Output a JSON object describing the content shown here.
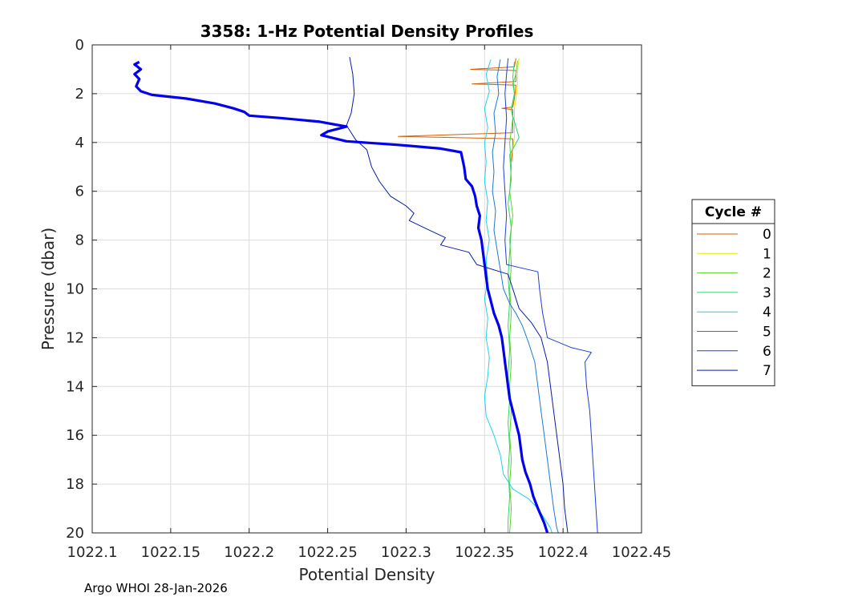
{
  "chart_data": {
    "type": "line",
    "title": "3358: 1-Hz Potential Density Profiles",
    "xlabel": "Potential Density",
    "ylabel": "Pressure (dbar)",
    "xlim": [
      1022.1,
      1022.45
    ],
    "ylim": [
      0,
      20
    ],
    "y_reversed": true,
    "grid": true,
    "x_ticks": [
      1022.1,
      1022.15,
      1022.2,
      1022.25,
      1022.3,
      1022.35,
      1022.4,
      1022.45
    ],
    "x_tick_labels": [
      "1022.1",
      "1022.15",
      "1022.2",
      "1022.25",
      "1022.3",
      "1022.35",
      "1022.4",
      "1022.45"
    ],
    "y_ticks": [
      0,
      2,
      4,
      6,
      8,
      10,
      12,
      14,
      16,
      18,
      20
    ],
    "y_tick_labels": [
      "0",
      "2",
      "4",
      "6",
      "8",
      "10",
      "12",
      "14",
      "16",
      "18",
      "20"
    ],
    "legend": {
      "title": "Cycle #",
      "placement": "outside-right"
    },
    "series": [
      {
        "name": "0",
        "color": "#d95f02",
        "width": 1,
        "points": [
          [
            1022.37,
            0.55
          ],
          [
            1022.369,
            0.9
          ],
          [
            1022.341,
            1.0
          ],
          [
            1022.37,
            1.05
          ],
          [
            1022.37,
            1.5
          ],
          [
            1022.342,
            1.6
          ],
          [
            1022.37,
            1.65
          ],
          [
            1022.369,
            2.2
          ],
          [
            1022.368,
            2.55
          ],
          [
            1022.361,
            2.6
          ],
          [
            1022.368,
            2.65
          ],
          [
            1022.368,
            3.6
          ],
          [
            1022.295,
            3.75
          ],
          [
            1022.368,
            3.85
          ],
          [
            1022.368,
            4.2
          ],
          [
            1022.367,
            4.8
          ]
        ]
      },
      {
        "name": "1",
        "color": "#e8e800",
        "width": 1,
        "points": [
          [
            1022.372,
            0.55
          ],
          [
            1022.371,
            1.0
          ],
          [
            1022.371,
            1.6
          ],
          [
            1022.37,
            2.2
          ],
          [
            1022.369,
            2.6
          ],
          [
            1022.369,
            3.3
          ],
          [
            1022.369,
            3.8
          ],
          [
            1022.368,
            4.3
          ],
          [
            1022.368,
            4.8
          ]
        ]
      },
      {
        "name": "2",
        "color": "#5ad22e",
        "width": 1,
        "points": [
          [
            1022.371,
            0.65
          ],
          [
            1022.37,
            1.2
          ],
          [
            1022.368,
            1.6
          ],
          [
            1022.369,
            2.0
          ],
          [
            1022.367,
            2.6
          ],
          [
            1022.368,
            3.0
          ],
          [
            1022.367,
            3.5
          ],
          [
            1022.366,
            4.0
          ],
          [
            1022.367,
            5.0
          ],
          [
            1022.366,
            6.0
          ],
          [
            1022.368,
            7.0
          ],
          [
            1022.366,
            8.0
          ],
          [
            1022.367,
            9.0
          ],
          [
            1022.366,
            10.0
          ],
          [
            1022.367,
            11.0
          ],
          [
            1022.366,
            12.0
          ],
          [
            1022.367,
            13.0
          ],
          [
            1022.366,
            14.0
          ],
          [
            1022.367,
            15.0
          ],
          [
            1022.366,
            16.0
          ],
          [
            1022.367,
            17.0
          ],
          [
            1022.366,
            18.0
          ],
          [
            1022.367,
            19.0
          ],
          [
            1022.366,
            20.0
          ]
        ]
      },
      {
        "name": "3",
        "color": "#33d466",
        "width": 1,
        "points": [
          [
            1022.369,
            0.7
          ],
          [
            1022.368,
            1.3
          ],
          [
            1022.369,
            2.0
          ],
          [
            1022.367,
            2.7
          ],
          [
            1022.372,
            3.8
          ],
          [
            1022.366,
            4.5
          ],
          [
            1022.367,
            5.5
          ],
          [
            1022.365,
            6.5
          ],
          [
            1022.367,
            7.5
          ],
          [
            1022.366,
            8.5
          ],
          [
            1022.365,
            9.5
          ],
          [
            1022.366,
            10.5
          ],
          [
            1022.365,
            11.5
          ],
          [
            1022.366,
            12.5
          ],
          [
            1022.365,
            13.5
          ],
          [
            1022.366,
            14.5
          ],
          [
            1022.365,
            15.5
          ],
          [
            1022.366,
            16.5
          ],
          [
            1022.365,
            17.5
          ],
          [
            1022.366,
            18.5
          ],
          [
            1022.365,
            19.5
          ],
          [
            1022.365,
            20.0
          ]
        ]
      },
      {
        "name": "4",
        "color": "#22d3e6",
        "width": 1,
        "points": [
          [
            1022.354,
            0.6
          ],
          [
            1022.351,
            1.2
          ],
          [
            1022.353,
            1.9
          ],
          [
            1022.35,
            2.6
          ],
          [
            1022.352,
            3.4
          ],
          [
            1022.35,
            4.0
          ],
          [
            1022.351,
            4.8
          ],
          [
            1022.35,
            5.6
          ],
          [
            1022.352,
            6.4
          ],
          [
            1022.351,
            7.2
          ],
          [
            1022.353,
            8.0
          ],
          [
            1022.351,
            8.8
          ],
          [
            1022.352,
            9.6
          ],
          [
            1022.35,
            10.4
          ],
          [
            1022.352,
            11.2
          ],
          [
            1022.351,
            12.0
          ],
          [
            1022.353,
            12.8
          ],
          [
            1022.352,
            13.6
          ],
          [
            1022.35,
            14.4
          ],
          [
            1022.351,
            15.2
          ],
          [
            1022.356,
            16.0
          ],
          [
            1022.36,
            16.8
          ],
          [
            1022.362,
            17.6
          ],
          [
            1022.368,
            18.2
          ],
          [
            1022.378,
            18.6
          ],
          [
            1022.384,
            19.0
          ],
          [
            1022.388,
            19.4
          ],
          [
            1022.392,
            19.8
          ],
          [
            1022.393,
            20.0
          ]
        ]
      },
      {
        "name": "5",
        "color": "#1f78d4",
        "width": 1,
        "points": [
          [
            1022.36,
            0.6
          ],
          [
            1022.358,
            1.3
          ],
          [
            1022.359,
            2.0
          ],
          [
            1022.356,
            2.8
          ],
          [
            1022.357,
            3.6
          ],
          [
            1022.355,
            4.4
          ],
          [
            1022.356,
            5.2
          ],
          [
            1022.355,
            6.0
          ],
          [
            1022.357,
            6.8
          ],
          [
            1022.356,
            7.6
          ],
          [
            1022.358,
            8.4
          ],
          [
            1022.36,
            9.2
          ],
          [
            1022.362,
            10.0
          ],
          [
            1022.366,
            10.6
          ],
          [
            1022.37,
            11.0
          ],
          [
            1022.374,
            11.5
          ],
          [
            1022.378,
            12.2
          ],
          [
            1022.382,
            13.0
          ],
          [
            1022.384,
            14.0
          ],
          [
            1022.386,
            15.0
          ],
          [
            1022.388,
            16.0
          ],
          [
            1022.39,
            17.0
          ],
          [
            1022.392,
            18.0
          ],
          [
            1022.394,
            19.0
          ],
          [
            1022.396,
            19.8
          ],
          [
            1022.397,
            20.0
          ]
        ]
      },
      {
        "name": "6",
        "color": "#1f3fd0",
        "width": 1,
        "points": [
          [
            1022.365,
            0.55
          ],
          [
            1022.364,
            1.2
          ],
          [
            1022.363,
            2.0
          ],
          [
            1022.364,
            3.0
          ],
          [
            1022.363,
            4.0
          ],
          [
            1022.362,
            5.0
          ],
          [
            1022.363,
            6.0
          ],
          [
            1022.364,
            7.0
          ],
          [
            1022.363,
            8.0
          ],
          [
            1022.364,
            9.0
          ],
          [
            1022.384,
            9.3
          ],
          [
            1022.385,
            10.0
          ],
          [
            1022.387,
            11.0
          ],
          [
            1022.39,
            12.0
          ],
          [
            1022.405,
            12.4
          ],
          [
            1022.418,
            12.6
          ],
          [
            1022.414,
            13.0
          ],
          [
            1022.415,
            14.0
          ],
          [
            1022.417,
            15.0
          ],
          [
            1022.418,
            16.0
          ],
          [
            1022.419,
            17.0
          ],
          [
            1022.42,
            18.0
          ],
          [
            1022.421,
            19.0
          ],
          [
            1022.422,
            20.0
          ]
        ]
      },
      {
        "name": "7",
        "color": "#0a1aa6",
        "width": 1,
        "points": [
          [
            1022.264,
            0.5
          ],
          [
            1022.266,
            1.2
          ],
          [
            1022.267,
            2.0
          ],
          [
            1022.265,
            2.8
          ],
          [
            1022.262,
            3.3
          ],
          [
            1022.268,
            3.9
          ],
          [
            1022.275,
            4.3
          ],
          [
            1022.278,
            5.0
          ],
          [
            1022.283,
            5.6
          ],
          [
            1022.29,
            6.2
          ],
          [
            1022.3,
            6.6
          ],
          [
            1022.305,
            6.9
          ],
          [
            1022.302,
            7.2
          ],
          [
            1022.315,
            7.6
          ],
          [
            1022.325,
            7.9
          ],
          [
            1022.322,
            8.2
          ],
          [
            1022.34,
            8.5
          ],
          [
            1022.345,
            9.0
          ],
          [
            1022.365,
            9.4
          ],
          [
            1022.368,
            10.0
          ],
          [
            1022.372,
            10.8
          ],
          [
            1022.38,
            11.4
          ],
          [
            1022.386,
            12.0
          ],
          [
            1022.39,
            13.0
          ],
          [
            1022.392,
            14.0
          ],
          [
            1022.394,
            15.0
          ],
          [
            1022.396,
            16.0
          ],
          [
            1022.398,
            17.0
          ],
          [
            1022.4,
            18.0
          ],
          [
            1022.401,
            19.0
          ],
          [
            1022.403,
            20.0
          ]
        ]
      },
      {
        "name": "",
        "color": "#0000ee",
        "width": 3.2,
        "points": [
          [
            1022.13,
            0.7
          ],
          [
            1022.127,
            0.8
          ],
          [
            1022.131,
            1.0
          ],
          [
            1022.127,
            1.2
          ],
          [
            1022.13,
            1.4
          ],
          [
            1022.128,
            1.7
          ],
          [
            1022.131,
            1.9
          ],
          [
            1022.138,
            2.05
          ],
          [
            1022.16,
            2.2
          ],
          [
            1022.178,
            2.4
          ],
          [
            1022.19,
            2.6
          ],
          [
            1022.197,
            2.75
          ],
          [
            1022.2,
            2.9
          ],
          [
            1022.22,
            3.0
          ],
          [
            1022.245,
            3.15
          ],
          [
            1022.262,
            3.35
          ],
          [
            1022.25,
            3.55
          ],
          [
            1022.246,
            3.7
          ],
          [
            1022.262,
            3.95
          ],
          [
            1022.295,
            4.1
          ],
          [
            1022.322,
            4.25
          ],
          [
            1022.335,
            4.4
          ],
          [
            1022.337,
            5.0
          ],
          [
            1022.338,
            5.5
          ],
          [
            1022.342,
            5.8
          ],
          [
            1022.344,
            6.2
          ],
          [
            1022.345,
            6.6
          ],
          [
            1022.347,
            7.0
          ],
          [
            1022.346,
            7.5
          ],
          [
            1022.348,
            8.0
          ],
          [
            1022.349,
            8.5
          ],
          [
            1022.35,
            9.0
          ],
          [
            1022.351,
            9.5
          ],
          [
            1022.352,
            10.0
          ],
          [
            1022.354,
            10.5
          ],
          [
            1022.356,
            11.0
          ],
          [
            1022.359,
            11.5
          ],
          [
            1022.361,
            12.0
          ],
          [
            1022.362,
            12.5
          ],
          [
            1022.363,
            13.0
          ],
          [
            1022.364,
            13.5
          ],
          [
            1022.365,
            14.0
          ],
          [
            1022.366,
            14.5
          ],
          [
            1022.368,
            15.0
          ],
          [
            1022.37,
            15.5
          ],
          [
            1022.372,
            16.0
          ],
          [
            1022.373,
            16.5
          ],
          [
            1022.374,
            17.0
          ],
          [
            1022.376,
            17.5
          ],
          [
            1022.379,
            18.0
          ],
          [
            1022.381,
            18.5
          ],
          [
            1022.384,
            19.0
          ],
          [
            1022.388,
            19.6
          ],
          [
            1022.39,
            20.0
          ]
        ]
      }
    ]
  },
  "footer": "Argo WHOI 28-Jan-2026"
}
